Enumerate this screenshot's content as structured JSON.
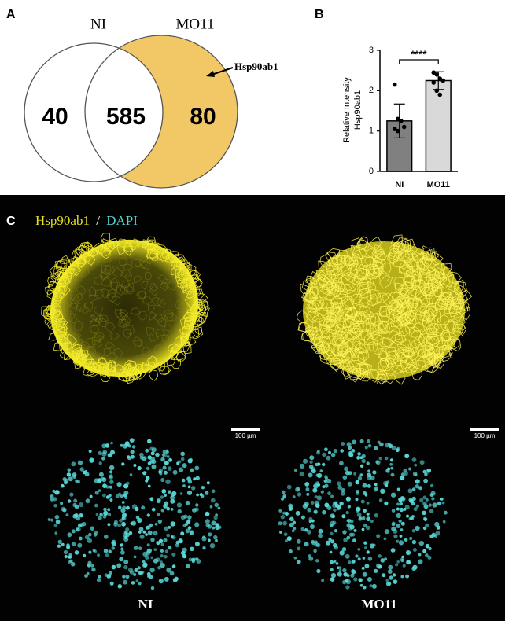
{
  "panel_labels": [
    "A",
    "B",
    "C"
  ],
  "venn": {
    "sets": [
      "NI",
      "MO11"
    ],
    "regions": [
      40,
      585,
      80
    ],
    "annotation": "Hsp90ab1"
  },
  "chart_data": {
    "type": "bar",
    "categories": [
      "NI",
      "MO11"
    ],
    "values": [
      1.25,
      2.25
    ],
    "errors": [
      0.42,
      0.22
    ],
    "points": [
      [
        2.15,
        1.3,
        1.25,
        1.1,
        1.05,
        1.0
      ],
      [
        2.45,
        2.4,
        2.3,
        2.25,
        2.2,
        2.0,
        1.9
      ]
    ],
    "colors": [
      "#808080",
      "#d9d9d9"
    ],
    "ylabel": [
      "Relative Intensity",
      "Hsp90ab1"
    ],
    "annotation": "****",
    "ylim": [
      0,
      3
    ],
    "yticks": [
      0,
      1,
      2,
      3
    ]
  },
  "micrograph": {
    "stain_labels": [
      "Hsp90ab1",
      "/",
      "DAPI"
    ],
    "scale_bars": [
      "100 µm",
      "100 µm"
    ],
    "conditions": [
      "NI",
      "MO11"
    ]
  }
}
